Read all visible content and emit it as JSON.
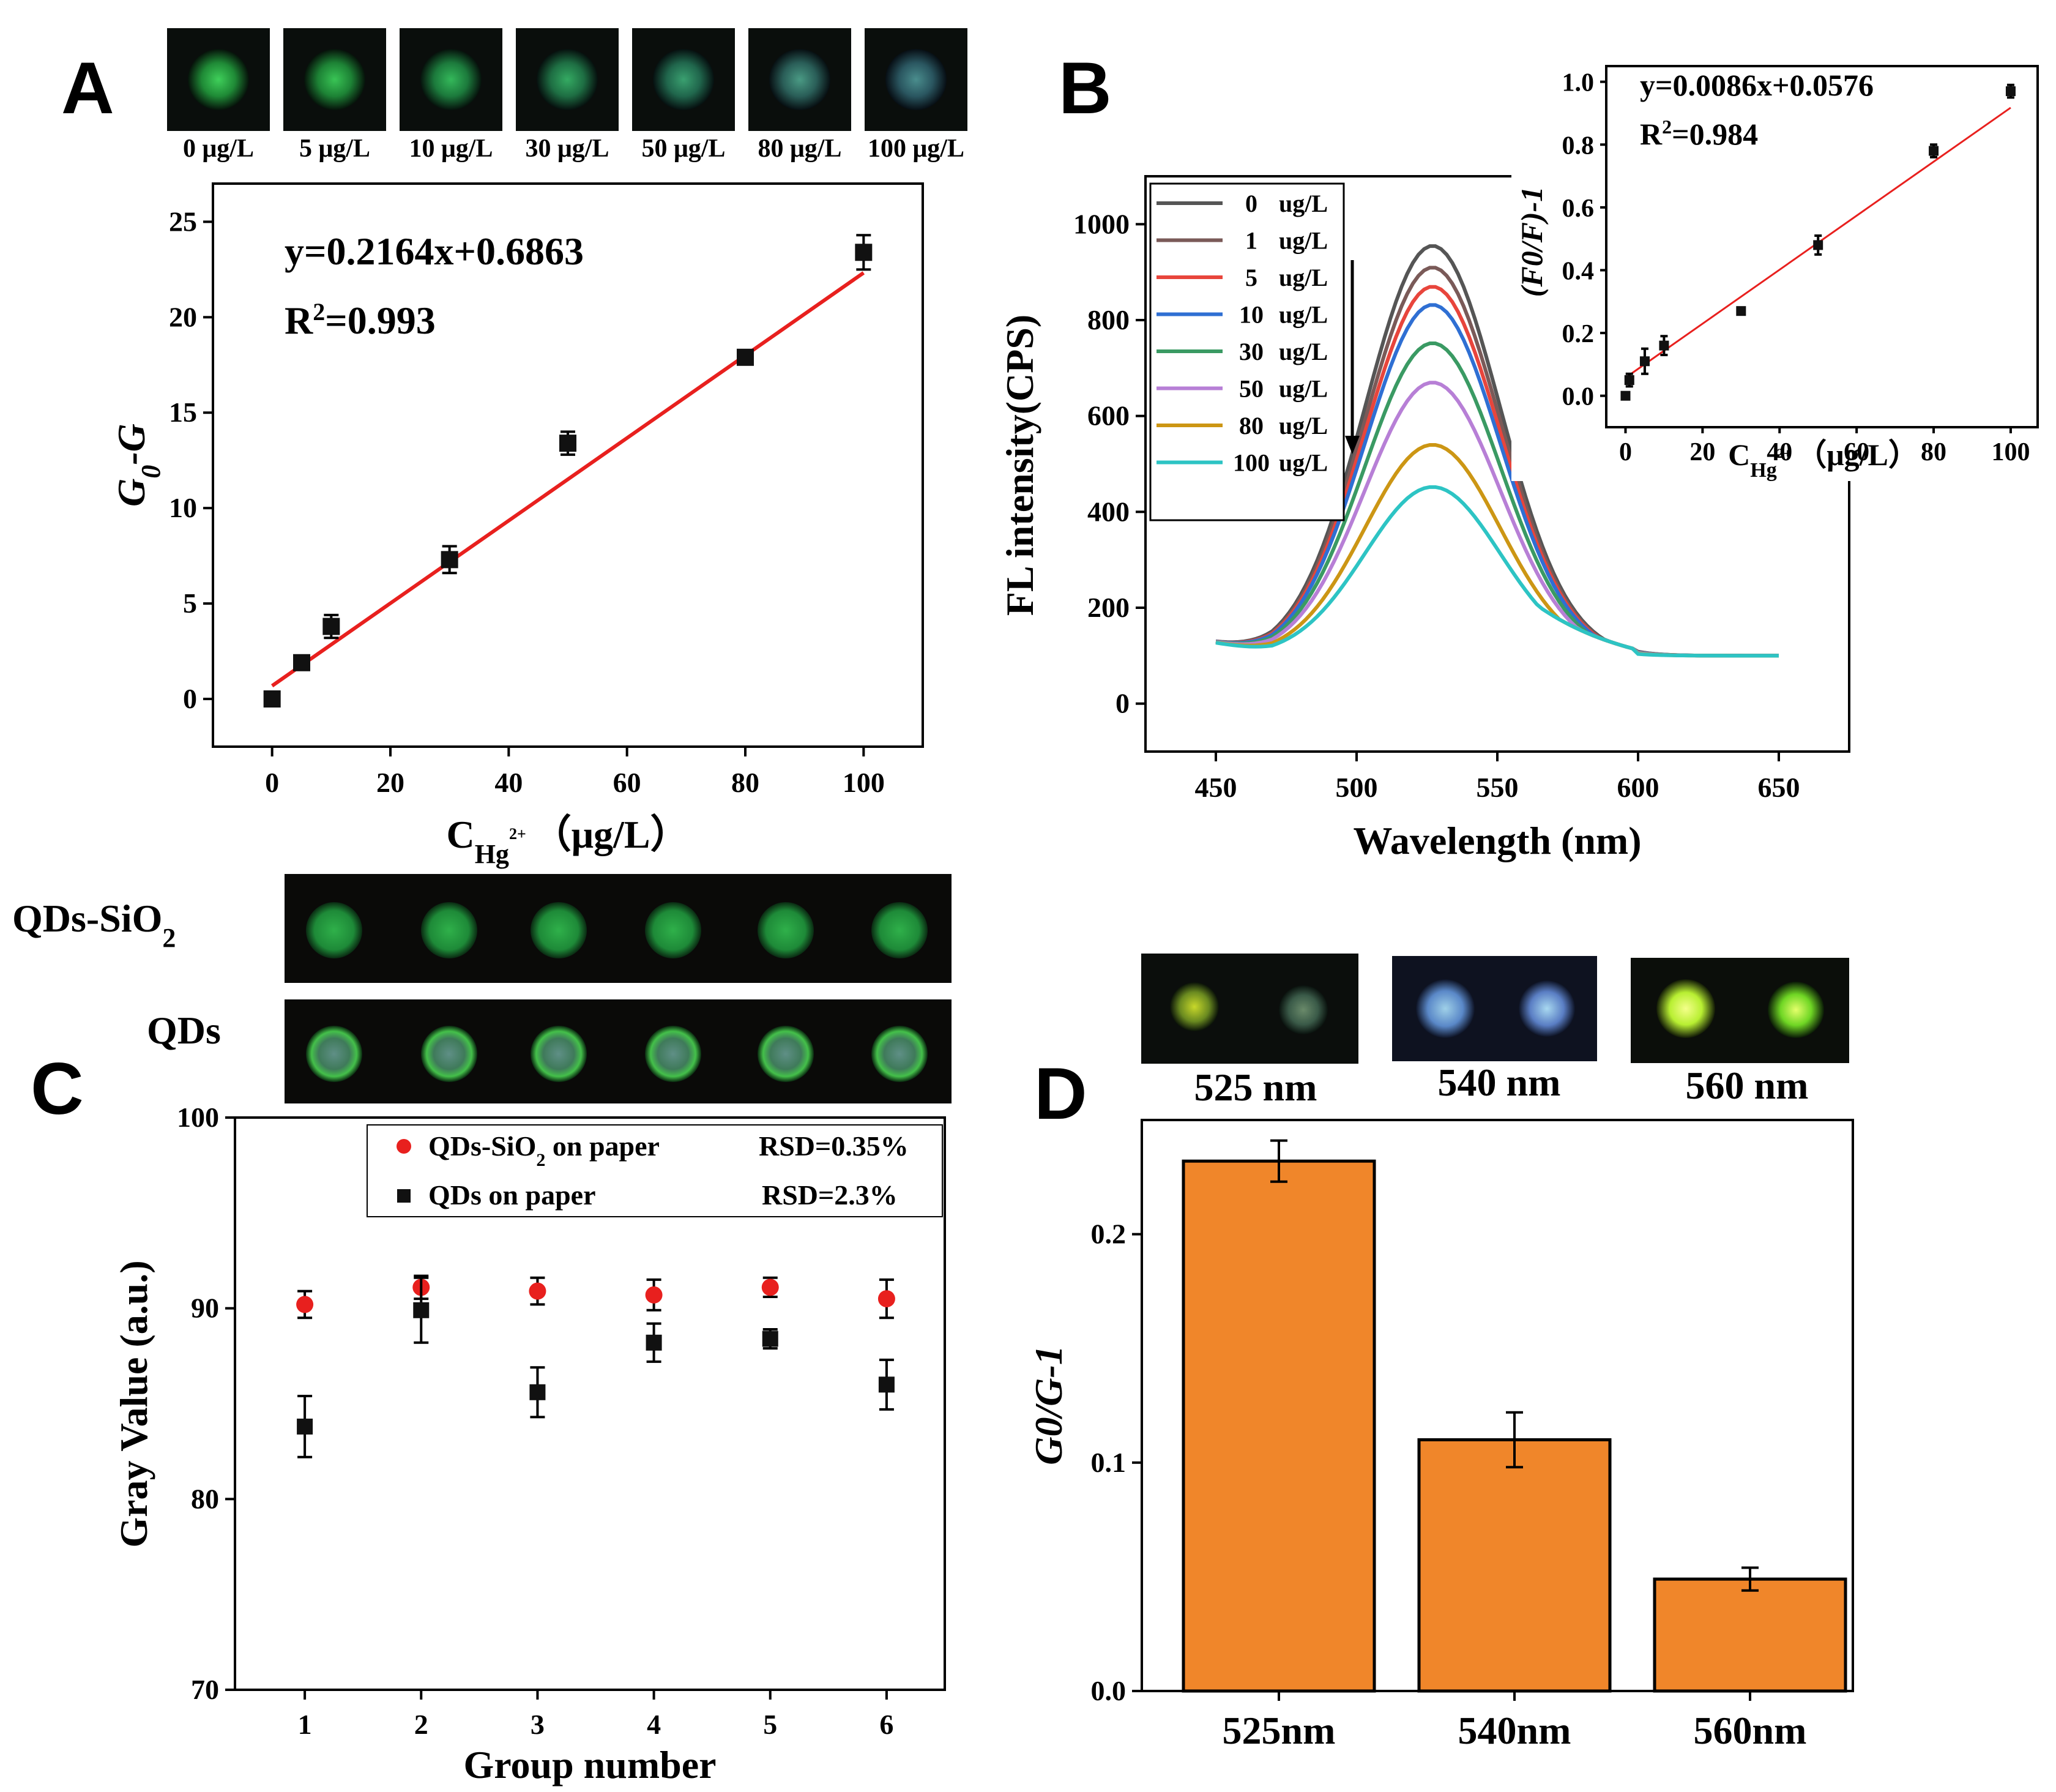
{
  "colors": {
    "fit_line": "#e8201e",
    "marker": "#111111",
    "red_marker": "#e8201e",
    "bar_fill": "#f0862a",
    "qd_green": "#3cb33c",
    "curves": [
      "#555555",
      "#7a5a58",
      "#e8453c",
      "#2f6fd3",
      "#3a9a63",
      "#b77fd6",
      "#cc9614",
      "#2dc4c4"
    ]
  },
  "panel_labels": {
    "a": "A",
    "b": "B",
    "c": "C",
    "d": "D"
  },
  "chart_data": [
    {
      "id": "A",
      "type": "scatter",
      "photo_labels": [
        "0 μg/L",
        "5 μg/L",
        "10 μg/L",
        "30 μg/L",
        "50 μg/L",
        "80 μg/L",
        "100 μg/L"
      ],
      "x": [
        0,
        5,
        10,
        30,
        50,
        80,
        100
      ],
      "y": [
        0.0,
        1.9,
        3.8,
        7.3,
        13.4,
        17.9,
        23.4
      ],
      "yerr": [
        0.3,
        0.2,
        0.6,
        0.7,
        0.6,
        0.3,
        0.9
      ],
      "fit": {
        "slope": 0.2164,
        "intercept": 0.6863,
        "equation": "y=0.2164x+0.6863",
        "r2_text": "=0.993",
        "r2_label": "R"
      },
      "xlim": [
        -10,
        110
      ],
      "ylim": [
        -2.5,
        27
      ],
      "xticks": [
        0,
        20,
        40,
        60,
        80,
        100
      ],
      "yticks": [
        0,
        5,
        10,
        15,
        20,
        25
      ],
      "ylabel": "G",
      "ylabel_sub": "0",
      "ylabel_tail": "-G",
      "xlabel": "C",
      "xlabel_sub": "Hg",
      "xlabel_sup": "2+",
      "xlabel_unit": "（μg/L）"
    },
    {
      "id": "B",
      "type": "line",
      "xlabel": "Wavelength (nm)",
      "ylabel": "FL intensity(CPS)",
      "xlim": [
        425,
        675
      ],
      "ylim": [
        -100,
        1100
      ],
      "xticks": [
        450,
        500,
        550,
        600,
        650
      ],
      "yticks": [
        0,
        200,
        400,
        600,
        800,
        1000
      ],
      "series": [
        {
          "name": "0",
          "unit": "ug/L",
          "peak": 955
        },
        {
          "name": "1",
          "unit": "ug/L",
          "peak": 910
        },
        {
          "name": "5",
          "unit": "ug/L",
          "peak": 870
        },
        {
          "name": "10",
          "unit": "ug/L",
          "peak": 832
        },
        {
          "name": "30",
          "unit": "ug/L",
          "peak": 752
        },
        {
          "name": "50",
          "unit": "ug/L",
          "peak": 670
        },
        {
          "name": "80",
          "unit": "ug/L",
          "peak": 540
        },
        {
          "name": "100",
          "unit": "ug/L",
          "peak": 452
        }
      ],
      "peak_wavelength": 527,
      "inset": {
        "type": "scatter",
        "x": [
          0,
          1,
          5,
          10,
          30,
          50,
          80,
          100
        ],
        "y": [
          0.0,
          0.05,
          0.11,
          0.16,
          0.27,
          0.48,
          0.78,
          0.97
        ],
        "yerr": [
          0.01,
          0.02,
          0.04,
          0.03,
          0.01,
          0.03,
          0.02,
          0.02
        ],
        "fit": {
          "slope": 0.0086,
          "intercept": 0.0576,
          "equation": "y=0.0086x+0.0576",
          "r2_text": "=0.984",
          "r2_label": "R"
        },
        "xlim": [
          -5,
          107
        ],
        "ylim": [
          -0.1,
          1.05
        ],
        "xticks": [
          0,
          20,
          40,
          60,
          80,
          100
        ],
        "yticks": [
          0.0,
          0.2,
          0.4,
          0.6,
          0.8,
          1.0
        ],
        "ytick_labels": [
          "0.0",
          "0.2",
          "0.4",
          "0.6",
          "0.8",
          "1.0"
        ],
        "ylabel": "(F0/F)-1",
        "xlabel": "C",
        "xlabel_sub": "Hg",
        "xlabel_sup": "2+",
        "xlabel_unit": "（μg/L）"
      }
    },
    {
      "id": "C",
      "type": "scatter",
      "row_labels": [
        "QDs-SiO",
        "QDs"
      ],
      "row_label_sub": "2",
      "x": [
        1,
        2,
        3,
        4,
        5,
        6
      ],
      "series": [
        {
          "name": "QDs-SiO",
          "name_sub": "2",
          "name_tail": " on paper",
          "rsd": "RSD=0.35%",
          "marker": "circle",
          "values": [
            90.2,
            91.1,
            90.9,
            90.7,
            91.1,
            90.5
          ],
          "err": [
            0.7,
            0.6,
            0.7,
            0.8,
            0.5,
            1.0
          ]
        },
        {
          "name": "QDs on paper",
          "rsd": "RSD=2.3%",
          "marker": "square",
          "values": [
            83.8,
            89.9,
            85.6,
            88.2,
            88.4,
            86.0
          ],
          "err": [
            1.6,
            1.7,
            1.3,
            1.0,
            0.5,
            1.3
          ]
        }
      ],
      "xlim": [
        0.4,
        6.5
      ],
      "ylim": [
        70,
        100
      ],
      "xticks": [
        1,
        2,
        3,
        4,
        5,
        6
      ],
      "yticks": [
        70,
        80,
        90,
        100
      ],
      "xlabel": "Group number",
      "ylabel": "Gray Value (a.u.)"
    },
    {
      "id": "D",
      "type": "bar",
      "photo_labels": [
        "525 nm",
        "540 nm",
        "560 nm"
      ],
      "categories": [
        "525nm",
        "540nm",
        "560nm"
      ],
      "values": [
        0.232,
        0.11,
        0.049
      ],
      "err": [
        0.009,
        0.012,
        0.005
      ],
      "ylim": [
        0,
        0.25
      ],
      "yticks": [
        0.0,
        0.1,
        0.2
      ],
      "ytick_labels": [
        "0.0",
        "0.1",
        "0.2"
      ],
      "ylabel": "G0/G-1"
    }
  ]
}
